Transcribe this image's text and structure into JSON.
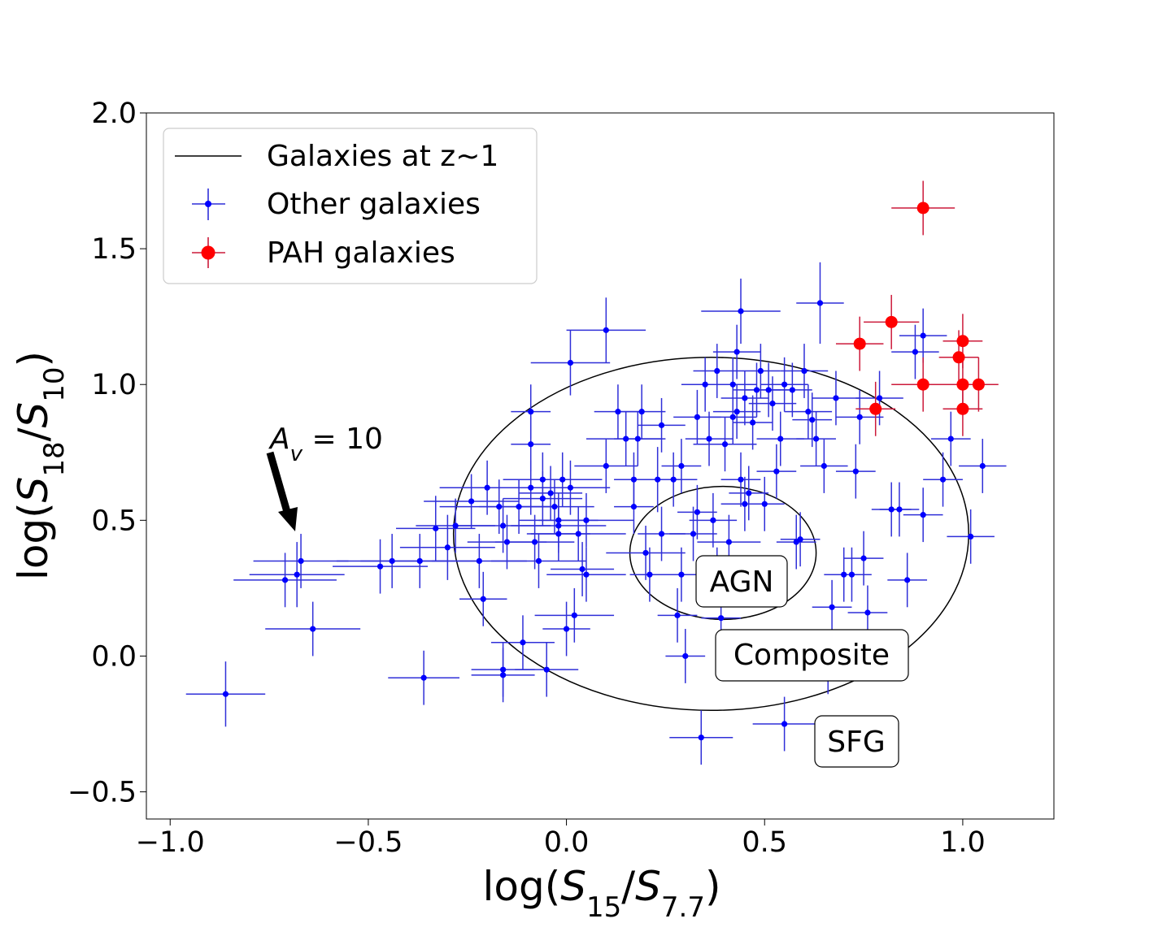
{
  "chart_data": {
    "type": "scatter",
    "title": "",
    "xlabel": {
      "prefix": "log(",
      "v1": "S",
      "s1": "15",
      "slash": "/",
      "v2": "S",
      "s2": "7.7",
      "suffix": ")"
    },
    "ylabel": {
      "prefix": "log(",
      "v1": "S",
      "s1": "18",
      "slash": "/",
      "v2": "S",
      "s2": "10",
      "suffix": ")"
    },
    "xlim": [
      -1.06,
      1.23
    ],
    "ylim": [
      -0.6,
      2.0
    ],
    "xticks": [
      -1.0,
      -0.5,
      0.0,
      0.5,
      1.0
    ],
    "xtick_labels": [
      "−1.0",
      "−0.5",
      "0.0",
      "0.5",
      "1.0"
    ],
    "yticks": [
      -0.5,
      0.0,
      0.5,
      1.0,
      1.5,
      2.0
    ],
    "ytick_labels": [
      "−0.5",
      "0.0",
      "0.5",
      "1.0",
      "1.5",
      "2.0"
    ],
    "grid": false,
    "legend_position": "top-left",
    "legend": [
      {
        "label": "Galaxies at z~1",
        "kind": "line",
        "color": "#000000"
      },
      {
        "label": "Other galaxies",
        "kind": "small-marker",
        "color": "#0000ff"
      },
      {
        "label": "PAH galaxies",
        "kind": "large-marker",
        "color": "#ff0000"
      }
    ],
    "colors": {
      "other_marker": "#0000ff",
      "other_err": "#2f2fd8",
      "pah_marker": "#ff0000",
      "pah_err": "#cc1a3a"
    },
    "ellipses": [
      {
        "name": "outer",
        "center": [
          0.365,
          0.45
        ],
        "half_width": 0.65,
        "half_height": 0.65
      },
      {
        "name": "inner",
        "center": [
          0.395,
          0.38
        ],
        "half_width": 0.235,
        "half_height": 0.245
      }
    ],
    "region_labels": [
      {
        "text": "AGN",
        "x": 0.44,
        "y": 0.28
      },
      {
        "text": "Composite",
        "x": 0.62,
        "y": 0.01
      },
      {
        "text": "SFG",
        "x": 0.73,
        "y": -0.31
      }
    ],
    "arrow": {
      "label_base": "A",
      "label_sub": "v",
      "label_rest": " = 10",
      "from": [
        -0.75,
        0.75
      ],
      "to": [
        -0.68,
        0.46
      ]
    },
    "series": [
      {
        "name": "Other galaxies",
        "points": [
          [
            -0.86,
            -0.14,
            0.1,
            0.12
          ],
          [
            -0.71,
            0.28,
            0.13,
            0.1
          ],
          [
            -0.68,
            0.3,
            0.12,
            0.12
          ],
          [
            -0.67,
            0.35,
            0.12,
            0.1
          ],
          [
            -0.64,
            0.1,
            0.12,
            0.1
          ],
          [
            -0.47,
            0.33,
            0.12,
            0.1
          ],
          [
            -0.44,
            0.35,
            0.14,
            0.1
          ],
          [
            -0.37,
            0.35,
            0.15,
            0.1
          ],
          [
            -0.36,
            -0.08,
            0.09,
            0.1
          ],
          [
            -0.33,
            0.47,
            0.1,
            0.12
          ],
          [
            -0.3,
            0.4,
            0.12,
            0.12
          ],
          [
            -0.28,
            0.48,
            0.1,
            0.1
          ],
          [
            -0.24,
            0.57,
            0.12,
            0.1
          ],
          [
            -0.22,
            0.35,
            0.12,
            0.1
          ],
          [
            -0.21,
            0.21,
            0.06,
            0.1
          ],
          [
            -0.2,
            0.62,
            0.12,
            0.1
          ],
          [
            -0.17,
            0.55,
            0.15,
            0.1
          ],
          [
            -0.16,
            0.48,
            0.12,
            0.1
          ],
          [
            -0.15,
            0.42,
            0.1,
            0.1
          ],
          [
            -0.16,
            -0.05,
            0.08,
            0.1
          ],
          [
            -0.16,
            -0.07,
            0.08,
            0.1
          ],
          [
            -0.12,
            0.55,
            0.1,
            0.1
          ],
          [
            -0.11,
            0.05,
            0.08,
            0.1
          ],
          [
            -0.09,
            0.62,
            0.08,
            0.1
          ],
          [
            -0.09,
            0.9,
            0.05,
            0.1
          ],
          [
            -0.09,
            0.78,
            0.05,
            0.1
          ],
          [
            -0.08,
            0.42,
            0.1,
            0.1
          ],
          [
            -0.07,
            0.35,
            0.12,
            0.1
          ],
          [
            -0.06,
            0.65,
            0.1,
            0.1
          ],
          [
            -0.06,
            0.58,
            0.1,
            0.1
          ],
          [
            -0.05,
            -0.05,
            0.08,
            0.1
          ],
          [
            -0.04,
            0.6,
            0.08,
            0.1
          ],
          [
            -0.03,
            0.55,
            0.1,
            0.1
          ],
          [
            -0.02,
            0.5,
            0.1,
            0.1
          ],
          [
            -0.02,
            0.48,
            0.12,
            0.1
          ],
          [
            -0.01,
            0.65,
            0.1,
            0.1
          ],
          [
            -0.02,
            0.45,
            0.08,
            0.1
          ],
          [
            0.01,
            0.62,
            0.1,
            0.1
          ],
          [
            0.0,
            0.1,
            0.06,
            0.1
          ],
          [
            0.01,
            1.08,
            0.1,
            0.12
          ],
          [
            0.02,
            0.15,
            0.1,
            0.1
          ],
          [
            0.03,
            0.45,
            0.12,
            0.1
          ],
          [
            0.04,
            0.32,
            0.08,
            0.1
          ],
          [
            0.05,
            0.5,
            0.12,
            0.1
          ],
          [
            0.05,
            0.3,
            0.1,
            0.1
          ],
          [
            0.1,
            0.7,
            0.08,
            0.1
          ],
          [
            0.1,
            1.2,
            0.1,
            0.12
          ],
          [
            0.13,
            0.9,
            0.06,
            0.1
          ],
          [
            0.15,
            0.8,
            0.1,
            0.1
          ],
          [
            0.17,
            0.55,
            0.05,
            0.1
          ],
          [
            0.17,
            0.65,
            0.05,
            0.1
          ],
          [
            0.18,
            0.8,
            0.06,
            0.1
          ],
          [
            0.19,
            0.9,
            0.06,
            0.1
          ],
          [
            0.2,
            0.38,
            0.1,
            0.1
          ],
          [
            0.21,
            0.3,
            0.05,
            0.1
          ],
          [
            0.23,
            0.65,
            0.1,
            0.12
          ],
          [
            0.24,
            0.85,
            0.06,
            0.1
          ],
          [
            0.24,
            0.45,
            0.06,
            0.1
          ],
          [
            0.27,
            0.65,
            0.05,
            0.1
          ],
          [
            0.28,
            0.15,
            0.05,
            0.1
          ],
          [
            0.29,
            0.3,
            0.05,
            0.1
          ],
          [
            0.29,
            0.7,
            0.05,
            0.1
          ],
          [
            0.3,
            0.0,
            0.05,
            0.1
          ],
          [
            0.32,
            0.45,
            0.06,
            0.1
          ],
          [
            0.33,
            0.53,
            0.05,
            0.1
          ],
          [
            0.33,
            0.88,
            0.06,
            0.1
          ],
          [
            0.34,
            -0.3,
            0.08,
            0.1
          ],
          [
            0.35,
            1.0,
            0.06,
            0.1
          ],
          [
            0.36,
            0.8,
            0.06,
            0.1
          ],
          [
            0.37,
            0.5,
            0.06,
            0.1
          ],
          [
            0.38,
            0.3,
            0.08,
            0.1
          ],
          [
            0.38,
            1.05,
            0.06,
            0.1
          ],
          [
            0.39,
            0.14,
            0.05,
            0.1
          ],
          [
            0.4,
            0.78,
            0.08,
            0.1
          ],
          [
            0.41,
            0.42,
            0.08,
            0.1
          ],
          [
            0.42,
            1.0,
            0.06,
            0.1
          ],
          [
            0.42,
            0.88,
            0.06,
            0.1
          ],
          [
            0.43,
            0.9,
            0.06,
            0.1
          ],
          [
            0.43,
            1.12,
            0.06,
            0.1
          ],
          [
            0.44,
            0.65,
            0.05,
            0.1
          ],
          [
            0.44,
            1.27,
            0.1,
            0.12
          ],
          [
            0.45,
            0.95,
            0.06,
            0.1
          ],
          [
            0.45,
            0.56,
            0.06,
            0.1
          ],
          [
            0.46,
            0.6,
            0.05,
            0.1
          ],
          [
            0.47,
            0.86,
            0.05,
            0.1
          ],
          [
            0.48,
            0.98,
            0.06,
            0.1
          ],
          [
            0.49,
            1.05,
            0.05,
            0.1
          ],
          [
            0.5,
            0.56,
            0.05,
            0.1
          ],
          [
            0.51,
            0.98,
            0.06,
            0.1
          ],
          [
            0.52,
            0.93,
            0.06,
            0.1
          ],
          [
            0.53,
            0.68,
            0.05,
            0.1
          ],
          [
            0.54,
            0.8,
            0.06,
            0.1
          ],
          [
            0.55,
            1.0,
            0.06,
            0.1
          ],
          [
            0.55,
            -0.25,
            0.08,
            0.1
          ],
          [
            0.57,
            0.98,
            0.05,
            0.1
          ],
          [
            0.58,
            0.42,
            0.05,
            0.1
          ],
          [
            0.59,
            0.43,
            0.05,
            0.1
          ],
          [
            0.6,
            1.05,
            0.06,
            0.1
          ],
          [
            0.61,
            0.9,
            0.06,
            0.1
          ],
          [
            0.62,
            0.87,
            0.05,
            0.1
          ],
          [
            0.63,
            0.8,
            0.05,
            0.1
          ],
          [
            0.64,
            1.3,
            0.06,
            0.15
          ],
          [
            0.65,
            0.7,
            0.06,
            0.1
          ],
          [
            0.66,
            -0.04,
            0.05,
            0.1
          ],
          [
            0.67,
            0.18,
            0.05,
            0.1
          ],
          [
            0.68,
            0.95,
            0.06,
            0.1
          ],
          [
            0.7,
            0.3,
            0.05,
            0.1
          ],
          [
            0.72,
            0.3,
            0.05,
            0.1
          ],
          [
            0.73,
            0.68,
            0.05,
            0.1
          ],
          [
            0.74,
            0.88,
            0.06,
            0.1
          ],
          [
            0.75,
            0.36,
            0.05,
            0.1
          ],
          [
            0.76,
            0.16,
            0.05,
            0.1
          ],
          [
            0.79,
            0.95,
            0.06,
            0.1
          ],
          [
            0.82,
            0.54,
            0.05,
            0.1
          ],
          [
            0.84,
            0.54,
            0.05,
            0.1
          ],
          [
            0.86,
            0.28,
            0.05,
            0.1
          ],
          [
            0.88,
            1.12,
            0.06,
            0.1
          ],
          [
            0.9,
            0.52,
            0.05,
            0.1
          ],
          [
            0.9,
            1.18,
            0.06,
            0.1
          ],
          [
            0.95,
            0.65,
            0.05,
            0.1
          ],
          [
            0.97,
            0.8,
            0.05,
            0.1
          ],
          [
            1.02,
            0.44,
            0.06,
            0.1
          ],
          [
            1.05,
            0.7,
            0.06,
            0.1
          ]
        ]
      },
      {
        "name": "PAH galaxies",
        "points": [
          [
            0.9,
            1.65,
            0.08,
            0.1
          ],
          [
            0.82,
            1.23,
            0.07,
            0.1
          ],
          [
            0.74,
            1.15,
            0.06,
            0.1
          ],
          [
            0.78,
            0.91,
            0.05,
            0.1
          ],
          [
            0.9,
            1.0,
            0.08,
            0.1
          ],
          [
            0.99,
            1.1,
            0.05,
            0.1
          ],
          [
            1.0,
            1.16,
            0.05,
            0.1
          ],
          [
            1.0,
            1.0,
            0.07,
            0.1
          ],
          [
            1.04,
            1.0,
            0.05,
            0.1
          ],
          [
            1.0,
            0.91,
            0.05,
            0.1
          ]
        ]
      }
    ]
  }
}
